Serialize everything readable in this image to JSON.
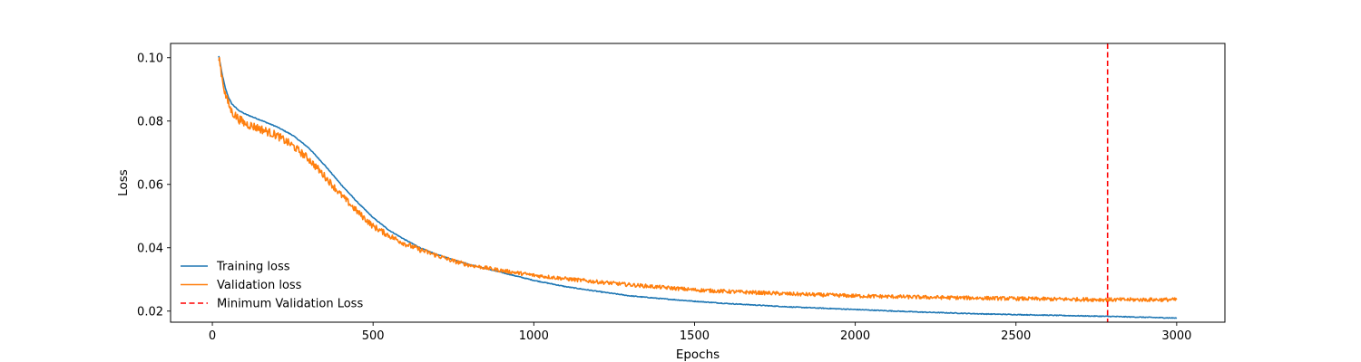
{
  "chart_data": {
    "type": "line",
    "title": "",
    "xlabel": "Epochs",
    "ylabel": "Loss",
    "xlim": [
      -130,
      3150
    ],
    "ylim": [
      0.0165,
      0.1045
    ],
    "xticks": [
      0,
      500,
      1000,
      1500,
      2000,
      2500,
      3000
    ],
    "yticks": [
      0.02,
      0.04,
      0.06,
      0.08,
      0.1
    ],
    "xtick_labels": [
      "0",
      "500",
      "1000",
      "1500",
      "2000",
      "2500",
      "3000"
    ],
    "ytick_labels": [
      "0.02",
      "0.04",
      "0.06",
      "0.08",
      "0.10"
    ],
    "grid": false,
    "legend_position": "lower-left",
    "series": [
      {
        "name": "Training loss",
        "color": "#1f77b4",
        "style": "solid",
        "x": [
          20,
          30,
          40,
          50,
          60,
          80,
          100,
          150,
          200,
          250,
          300,
          350,
          400,
          450,
          500,
          550,
          600,
          650,
          700,
          750,
          800,
          900,
          1000,
          1100,
          1200,
          1300,
          1400,
          1500,
          1600,
          1800,
          2000,
          2200,
          2400,
          2600,
          2800,
          3000
        ],
        "y": [
          0.1005,
          0.095,
          0.0905,
          0.0875,
          0.0855,
          0.0835,
          0.0823,
          0.0803,
          0.0782,
          0.0755,
          0.0715,
          0.066,
          0.06,
          0.0545,
          0.0495,
          0.0455,
          0.0425,
          0.0398,
          0.0378,
          0.0362,
          0.0347,
          0.0322,
          0.0297,
          0.0277,
          0.0262,
          0.0248,
          0.0239,
          0.0231,
          0.0224,
          0.0213,
          0.0205,
          0.0197,
          0.0191,
          0.0187,
          0.0183,
          0.0178
        ]
      },
      {
        "name": "Validation loss",
        "color": "#ff7f0e",
        "style": "solid",
        "noise": [
          0.0015,
          0.0006
        ],
        "x": [
          20,
          30,
          40,
          50,
          60,
          80,
          100,
          150,
          200,
          250,
          300,
          350,
          400,
          450,
          500,
          550,
          600,
          650,
          700,
          750,
          800,
          900,
          1000,
          1100,
          1200,
          1300,
          1400,
          1500,
          1600,
          1800,
          2000,
          2200,
          2400,
          2600,
          2800,
          3000
        ],
        "y": [
          0.1005,
          0.094,
          0.0885,
          0.0855,
          0.083,
          0.0808,
          0.0793,
          0.0775,
          0.0755,
          0.0722,
          0.068,
          0.0625,
          0.0567,
          0.0515,
          0.0468,
          0.0438,
          0.0412,
          0.0392,
          0.0375,
          0.0358,
          0.0345,
          0.0328,
          0.0313,
          0.0302,
          0.0292,
          0.0283,
          0.0275,
          0.0267,
          0.0262,
          0.0254,
          0.0248,
          0.0244,
          0.0241,
          0.0238,
          0.0236,
          0.0236
        ]
      }
    ],
    "vlines": [
      {
        "name": "Minimum Validation Loss",
        "x": 2785,
        "color": "#ff0000",
        "style": "dashed"
      }
    ]
  }
}
